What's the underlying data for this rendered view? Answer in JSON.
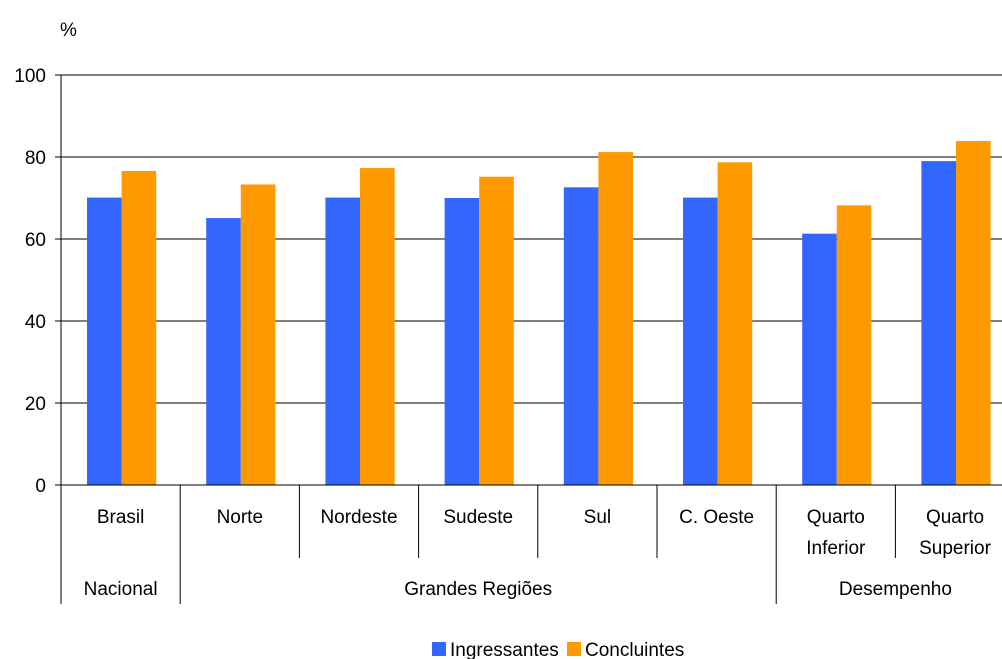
{
  "chart_data": {
    "type": "bar",
    "ylabel": "%",
    "ylim": [
      0,
      100
    ],
    "yticks": [
      0,
      20,
      40,
      60,
      80,
      100
    ],
    "grid": true,
    "legend_position": "bottom-center",
    "categories": [
      "Brasil",
      "Norte",
      "Nordeste",
      "Sudeste",
      "Sul",
      "C. Oeste",
      "Quarto Inferior",
      "Quarto Superior"
    ],
    "category_lines": [
      [
        "Brasil"
      ],
      [
        "Norte"
      ],
      [
        "Nordeste"
      ],
      [
        "Sudeste"
      ],
      [
        "Sul"
      ],
      [
        "C. Oeste"
      ],
      [
        "Quarto",
        "Inferior"
      ],
      [
        "Quarto",
        "Superior"
      ]
    ],
    "groups": [
      {
        "label": "Nacional",
        "start": 0,
        "end": 0
      },
      {
        "label": "Grandes Regiões",
        "start": 1,
        "end": 5
      },
      {
        "label": "Desempenho",
        "start": 6,
        "end": 7
      }
    ],
    "series": [
      {
        "name": "Ingressantes",
        "color": "#3366ff",
        "values": [
          70.1,
          65.1,
          70.1,
          70.0,
          72.6,
          70.1,
          61.3,
          79.0
        ]
      },
      {
        "name": "Concluintes",
        "color": "#ff9900",
        "values": [
          76.6,
          73.3,
          77.3,
          75.2,
          81.2,
          78.7,
          68.2,
          83.9
        ]
      }
    ]
  }
}
